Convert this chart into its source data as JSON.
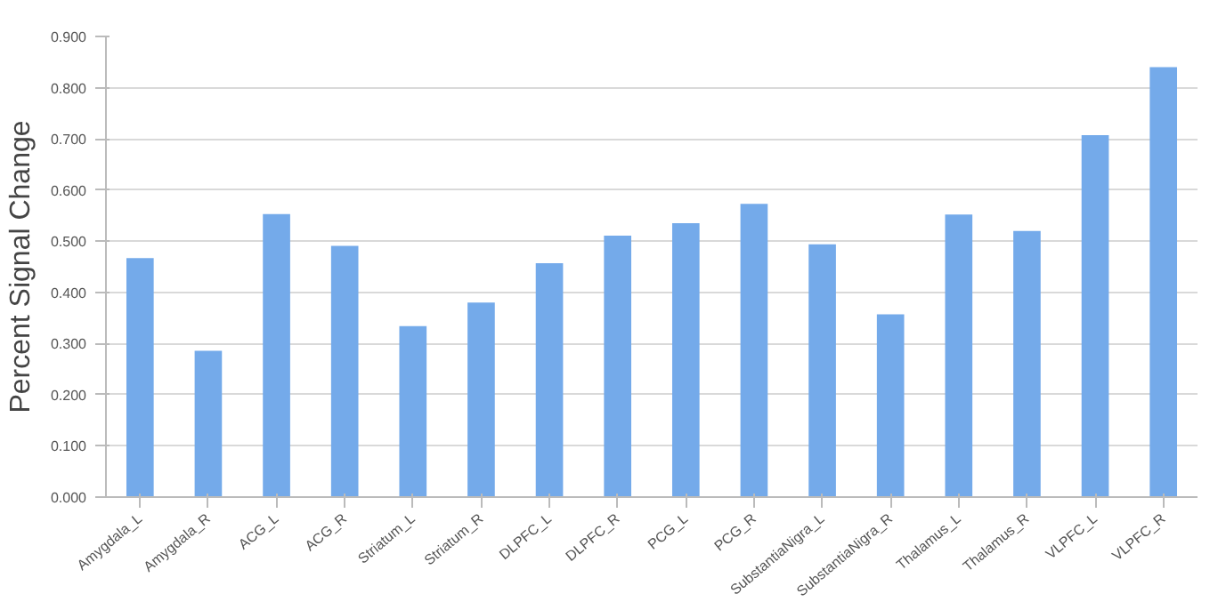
{
  "chart_data": {
    "type": "bar",
    "ylabel": "Percent Signal Change",
    "categories": [
      "Amygdala_L",
      "Amygdala_R",
      "ACG_L",
      "ACG_R",
      "Striatum_L",
      "Striatum_R",
      "DLPFC_L",
      "DLPFC_R",
      "PCG_L",
      "PCG_R",
      "SubstantiaNigra_L",
      "SubstantiaNigra_R",
      "Thalamus_L",
      "Thalamus_R",
      "VLPFC_L",
      "VLPFC_R"
    ],
    "values": [
      0.467,
      0.286,
      0.553,
      0.491,
      0.334,
      0.38,
      0.457,
      0.511,
      0.535,
      0.573,
      0.494,
      0.357,
      0.552,
      0.52,
      0.707,
      0.84
    ],
    "color": "#74aaea",
    "ylim": [
      0,
      0.9
    ],
    "yticks": [
      {
        "value": 0,
        "label": "0.000"
      },
      {
        "value": 0.1,
        "label": "0.100"
      },
      {
        "value": 0.2,
        "label": "0.200"
      },
      {
        "value": 0.3,
        "label": "0.300"
      },
      {
        "value": 0.4,
        "label": "0.400"
      },
      {
        "value": 0.5,
        "label": "0.500"
      },
      {
        "value": 0.6,
        "label": "0.600"
      },
      {
        "value": 0.7,
        "label": "0.700"
      },
      {
        "value": 0.8,
        "label": "0.800"
      },
      {
        "value": 0.9,
        "label": "0.900"
      }
    ],
    "grid": "y"
  }
}
